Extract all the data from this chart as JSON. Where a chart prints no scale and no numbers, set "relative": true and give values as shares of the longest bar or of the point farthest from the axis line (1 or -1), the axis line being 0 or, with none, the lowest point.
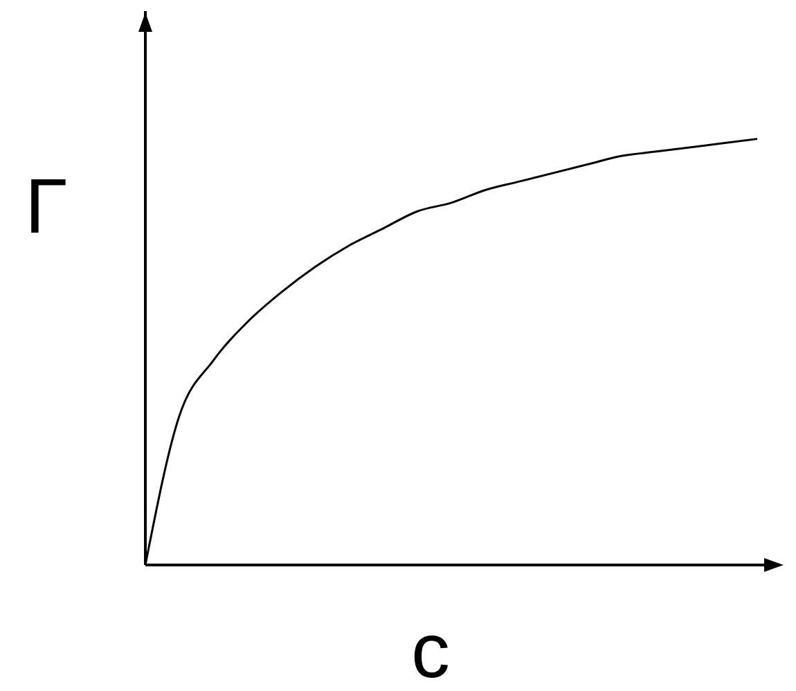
{
  "chart_data": {
    "type": "line",
    "relative": true,
    "xlabel": "c",
    "ylabel": "Γ",
    "marker": "none",
    "color": "#000000",
    "categories": [
      null,
      null,
      null,
      null,
      null,
      null,
      null,
      null,
      null,
      null,
      null,
      null,
      null,
      null,
      null,
      null,
      null,
      null,
      null
    ],
    "values": [
      0,
      0.35,
      0.48,
      0.57,
      0.64,
      0.7,
      0.75,
      0.79,
      0.83,
      0.85,
      0.88,
      0.9,
      0.92,
      0.94,
      0.96,
      0.97,
      0.98,
      0.99,
      1
    ]
  }
}
